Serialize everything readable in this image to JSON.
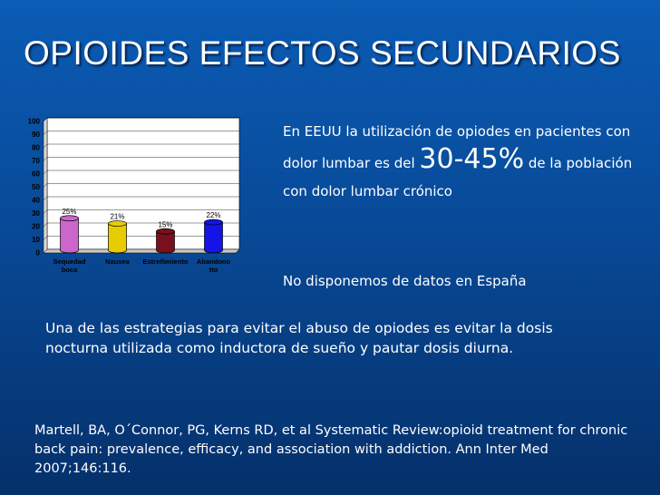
{
  "slide": {
    "title": "OPIOIDES EFECTOS SECUNDARIOS",
    "stat_intro": "En EEUU la utilización de  opiodes en pacientes con dolor lumbar  es del ",
    "stat_value": "30-45%",
    "stat_rest": " de la población con dolor lumbar crónico",
    "no_data": "No disponemos de datos en España",
    "strategy": "Una de las estrategias para evitar el abuso de opiodes es evitar la dosis nocturna utilizada como inductora de sueño y pautar dosis diurna.",
    "reference": "Martell, BA, O´Connor, PG, Kerns RD, et al Systematic Review:opioid treatment for chronic back pain: prevalence, efficacy, and association with addiction. Ann Inter Med 2007;146:116."
  },
  "chart_data": {
    "type": "bar",
    "categories": [
      "Sequedad boca",
      "Nausea",
      "Estreñimiento",
      "Abandono tto"
    ],
    "values": [
      25,
      21,
      15,
      22
    ],
    "data_labels": [
      "25%",
      "21%",
      "15%",
      "22%"
    ],
    "colors": [
      "#cc66cc",
      "#e6cc00",
      "#7a0f1e",
      "#1414e6"
    ],
    "ylim": [
      0,
      100
    ],
    "yticks": [
      0,
      10,
      20,
      30,
      40,
      50,
      60,
      70,
      80,
      90,
      100
    ],
    "grid": true,
    "legend": "none"
  }
}
